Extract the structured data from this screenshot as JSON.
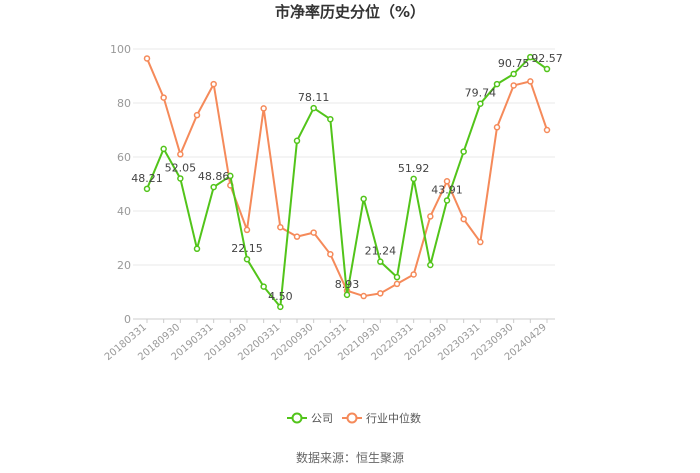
{
  "chart_data": {
    "type": "line",
    "title": "市净率历史分位（%）",
    "xlabel": "",
    "ylabel": "",
    "ylim": [
      0,
      100
    ],
    "yticks": [
      0,
      20,
      40,
      60,
      80,
      100
    ],
    "grid": true,
    "legend_position": "bottom-center",
    "x": [
      "20180331",
      "20180630",
      "20180930",
      "20181231",
      "20190331",
      "20190630",
      "20190930",
      "20191231",
      "20200331",
      "20200630",
      "20200930",
      "20201231",
      "20210331",
      "20210630",
      "20210930",
      "20211231",
      "20220331",
      "20220630",
      "20220930",
      "20221231",
      "20230331",
      "20230630",
      "20230930",
      "20231231",
      "20240429"
    ],
    "x_tick_labels": [
      "20180331",
      "20180930",
      "20190331",
      "20190930",
      "20200331",
      "20200930",
      "20210331",
      "20210930",
      "20220331",
      "20220930",
      "20230331",
      "20230930",
      "20240429"
    ],
    "series": [
      {
        "name": "公司",
        "color": "#52c41a",
        "values": [
          48.21,
          63,
          52.05,
          26,
          48.86,
          53,
          22.15,
          12,
          4.5,
          66,
          78.11,
          74,
          8.93,
          44.5,
          21.24,
          15.5,
          51.92,
          20,
          43.91,
          62,
          79.74,
          87,
          90.75,
          97,
          92.57
        ],
        "labels": {
          "0": "48.21",
          "2": "52.05",
          "4": "48.86",
          "6": "22.15",
          "8": "4.50",
          "10": "78.11",
          "12": "8.93",
          "14": "21.24",
          "16": "51.92",
          "18": "43.91",
          "20": "79.74",
          "22": "90.75",
          "24": "92.57"
        }
      },
      {
        "name": "行业中位数",
        "color": "#f58a5a",
        "values": [
          96.5,
          82,
          61,
          75.5,
          87,
          49.5,
          33,
          78,
          34,
          30.5,
          32,
          24,
          10.5,
          8.5,
          9.5,
          13,
          16.5,
          38,
          51,
          37,
          28.5,
          71,
          86.5,
          88,
          70
        ]
      }
    ]
  },
  "source_text": "数据来源：恒生聚源"
}
